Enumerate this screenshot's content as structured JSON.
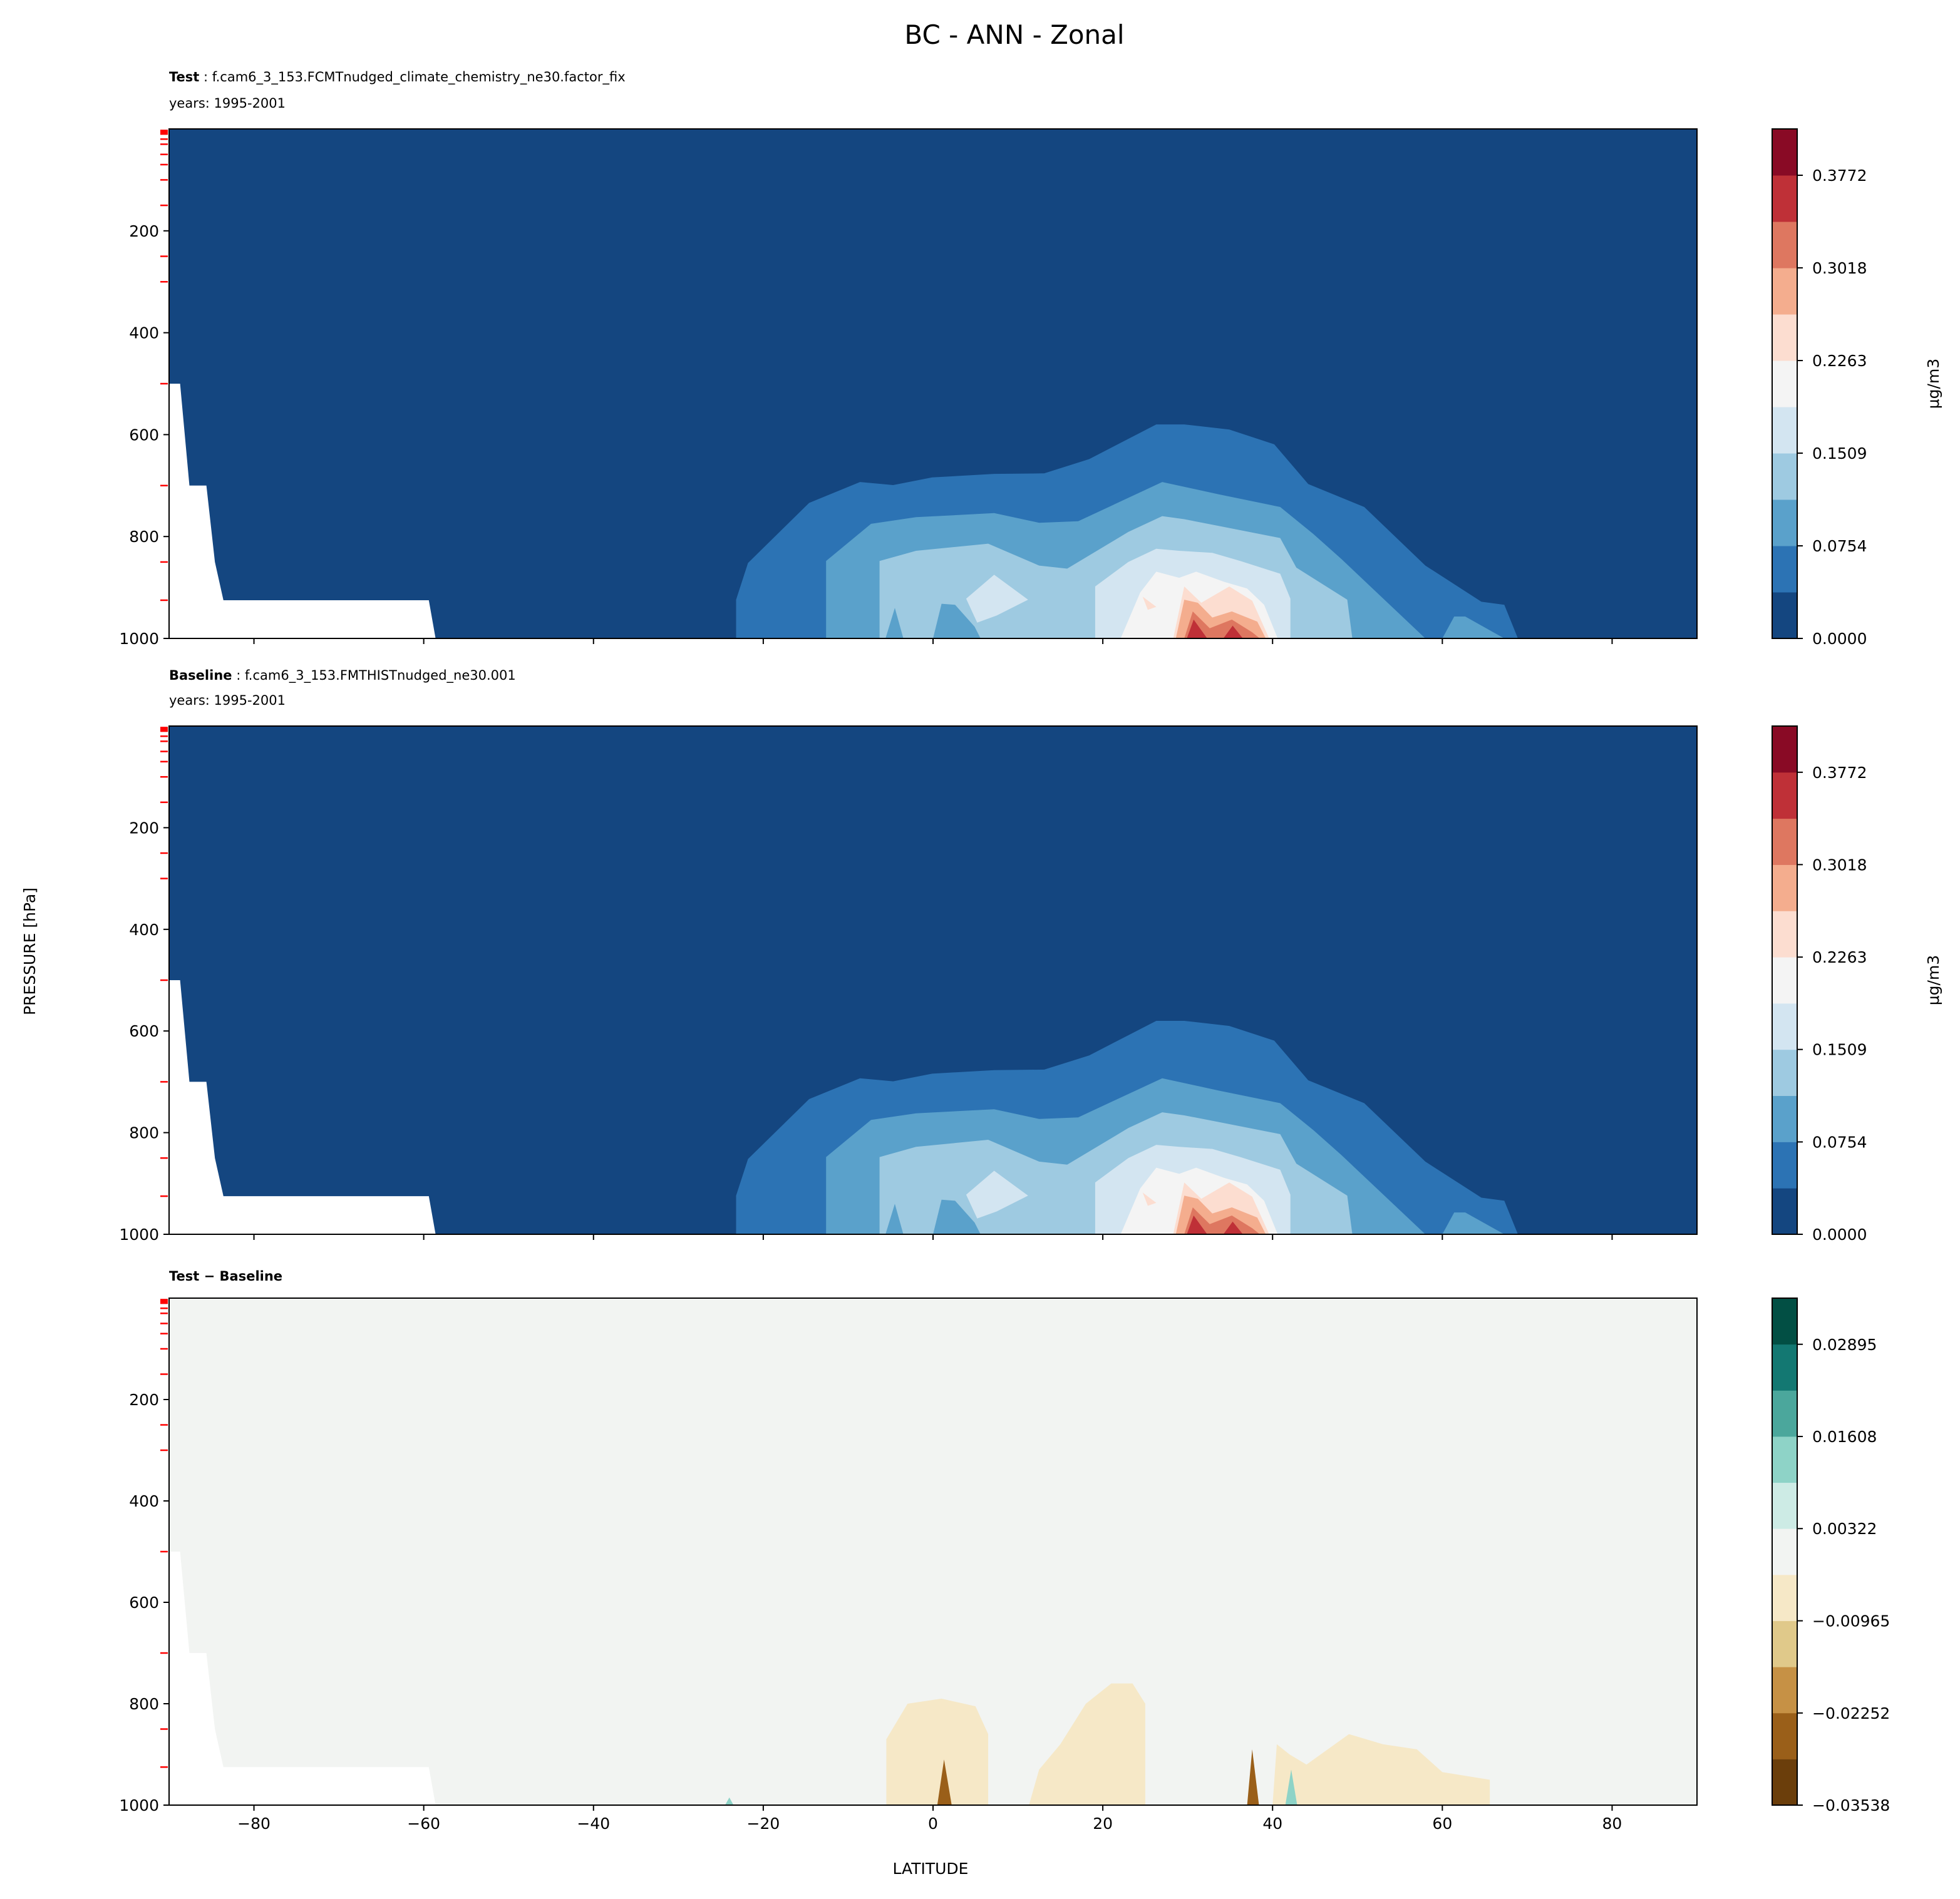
{
  "figure": {
    "title": "BC - ANN - Zonal",
    "xlabel": "LATITUDE",
    "ylabel": "PRESSURE [hPa]"
  },
  "chart_data": {
    "type": "contour",
    "x_range": [
      -90,
      90
    ],
    "y_range": [
      0,
      1000
    ],
    "y_inverted": true,
    "x_ticks": [
      -80,
      -60,
      -40,
      -20,
      0,
      20,
      40,
      60,
      80
    ],
    "x_tick_labels": [
      "−80",
      "−60",
      "−40",
      "−20",
      "0",
      "20",
      "40",
      "60",
      "80"
    ],
    "y_ticks": [
      200,
      400,
      600,
      800,
      1000
    ],
    "y_tick_labels": [
      "200",
      "400",
      "600",
      "800",
      "1000"
    ],
    "reference_levels_hPa": [
      3,
      5,
      7,
      10,
      20,
      30,
      50,
      70,
      100,
      150,
      250,
      300,
      500,
      700,
      850,
      925
    ],
    "reference_level_color": "#ff0000",
    "missing_region": [
      [
        -90,
        1000
      ],
      [
        -90,
        500
      ],
      [
        -88.7,
        500
      ],
      [
        -87.6,
        700
      ],
      [
        -85.6,
        700
      ],
      [
        -84.6,
        850
      ],
      [
        -83.6,
        925
      ],
      [
        -59.4,
        925
      ],
      [
        -58.6,
        1000
      ]
    ],
    "panels": [
      {
        "name": "test",
        "title_bold": "Test",
        "title_rest": " : f.cam6_3_153.FCMTnudged_climate_chemistry_ne30.factor_fix",
        "subtitle": "years: 1995-2001",
        "colorbar": {
          "label": "μg/m3",
          "bin_edges_min": 0,
          "bin_width": 0.03772,
          "colors": [
            "#144680",
            "#2c73b4",
            "#5aa1cb",
            "#9ecae1",
            "#d3e5f1",
            "#f4f4f4",
            "#fcddd0",
            "#f4ad8e",
            "#de7760",
            "#bf3037",
            "#890a25"
          ],
          "ticks": [
            0.0,
            0.0754,
            0.1509,
            0.2263,
            0.3018,
            0.3772
          ],
          "tick_labels": [
            "0.0000",
            "0.0754",
            "0.1509",
            "0.2263",
            "0.3018",
            "0.3772"
          ]
        },
        "background_bin": 0,
        "contours": "shared_bc"
      },
      {
        "name": "baseline",
        "title_bold": "Baseline",
        "title_rest": " : f.cam6_3_153.FMTHISTnudged_ne30.001",
        "subtitle": "years: 1995-2001",
        "colorbar": {
          "label": "μg/m3",
          "bin_edges_min": 0,
          "bin_width": 0.03772,
          "colors": [
            "#144680",
            "#2c73b4",
            "#5aa1cb",
            "#9ecae1",
            "#d3e5f1",
            "#f4f4f4",
            "#fcddd0",
            "#f4ad8e",
            "#de7760",
            "#bf3037",
            "#890a25"
          ],
          "ticks": [
            0.0,
            0.0754,
            0.1509,
            0.2263,
            0.3018,
            0.3772
          ],
          "tick_labels": [
            "0.0000",
            "0.0754",
            "0.1509",
            "0.2263",
            "0.3018",
            "0.3772"
          ]
        },
        "background_bin": 0,
        "contours": "shared_bc"
      },
      {
        "name": "difference",
        "title_bold": "Test − Baseline",
        "title_rest": "",
        "subtitle": "",
        "colorbar": {
          "label": "",
          "bin_edges_min": -0.03538,
          "bin_width": 0.006434,
          "colors": [
            "#6b3e0b",
            "#9a5f19",
            "#c69145",
            "#e0c98a",
            "#f6e8c7",
            "#f2f4f2",
            "#cdebe5",
            "#8ed3c7",
            "#4ba79c",
            "#137872",
            "#024f44"
          ],
          "ticks": [
            -0.03538,
            -0.02252,
            -0.00965,
            0.00322,
            0.01608,
            0.02895
          ],
          "tick_labels": [
            "−0.03538",
            "−0.02252",
            "−0.00965",
            "0.00322",
            "0.01608",
            "0.02895"
          ]
        },
        "background_bin": 5,
        "contours": [
          {
            "bin": 4,
            "polygons": [
              [
                [
                  -5.5,
                  1000
                ],
                [
                  -5.5,
                  870
                ],
                [
                  -3,
                  800
                ],
                [
                  1,
                  790
                ],
                [
                  5,
                  805
                ],
                [
                  6.5,
                  860
                ],
                [
                  6.5,
                  1000
                ]
              ],
              [
                [
                  11.3,
                  1000
                ],
                [
                  12.5,
                  930
                ],
                [
                  15,
                  880
                ],
                [
                  18,
                  800
                ],
                [
                  21,
                  760
                ],
                [
                  23.5,
                  760
                ],
                [
                  25,
                  800
                ],
                [
                  25,
                  1000
                ]
              ],
              [
                [
                  40,
                  1000
                ],
                [
                  40.5,
                  880
                ],
                [
                  42,
                  900
                ],
                [
                  44,
                  920
                ],
                [
                  49,
                  860
                ],
                [
                  53,
                  880
                ],
                [
                  57,
                  890
                ],
                [
                  60,
                  935
                ],
                [
                  65.6,
                  950
                ],
                [
                  65.6,
                  1000
                ]
              ]
            ]
          },
          {
            "bin": 1,
            "polygons": [
              [
                [
                  0.5,
                  1000
                ],
                [
                  1.3,
                  910
                ],
                [
                  2.2,
                  1000
                ]
              ],
              [
                [
                  37,
                  1000
                ],
                [
                  37.6,
                  890
                ],
                [
                  38.4,
                  1000
                ]
              ]
            ]
          },
          {
            "bin": 7,
            "polygons": [
              [
                [
                  41.5,
                  1000
                ],
                [
                  42.2,
                  930
                ],
                [
                  42.9,
                  1000
                ]
              ],
              [
                [
                  -24.5,
                  1000
                ],
                [
                  -24,
                  985
                ],
                [
                  -23.5,
                  1000
                ]
              ]
            ]
          }
        ]
      }
    ],
    "shared_bc_contours": [
      {
        "bin": 1,
        "polygons": [
          [
            [
              -23.2,
              998
            ],
            [
              -23.2,
              924
            ],
            [
              -21.8,
              852
            ],
            [
              -14.6,
              734
            ],
            [
              -8.6,
              693
            ],
            [
              -4.7,
              699
            ],
            [
              -0.1,
              684
            ],
            [
              7.2,
              677
            ],
            [
              13.1,
              676
            ],
            [
              18.4,
              648
            ],
            [
              26.3,
              580
            ],
            [
              29.6,
              580
            ],
            [
              34.9,
              590
            ],
            [
              40.2,
              619
            ],
            [
              44.2,
              697
            ],
            [
              50.8,
              742
            ],
            [
              58,
              857
            ],
            [
              64.6,
              928
            ],
            [
              67.3,
              934
            ],
            [
              68.9,
              1000
            ],
            [
              -23.2,
              1000
            ]
          ]
        ]
      },
      {
        "bin": 2,
        "polygons": [
          [
            [
              -12.6,
              1000
            ],
            [
              -12.6,
              848
            ],
            [
              -7.3,
              775
            ],
            [
              -2,
              762
            ],
            [
              7.2,
              754
            ],
            [
              12.5,
              773
            ],
            [
              17.1,
              770
            ],
            [
              27,
              693
            ],
            [
              33.6,
              717
            ],
            [
              40.9,
              742
            ],
            [
              44.8,
              795
            ],
            [
              48.1,
              844
            ],
            [
              58,
              1000
            ]
          ],
          [
            [
              60,
              1000
            ],
            [
              61.4,
              957
            ],
            [
              62.7,
              957
            ],
            [
              67.3,
              1000
            ]
          ]
        ]
      },
      {
        "bin": 3,
        "polygons": [
          [
            [
              -6.3,
              1000
            ],
            [
              -6.3,
              848
            ],
            [
              -2,
              828
            ],
            [
              6.5,
              814
            ],
            [
              12.5,
              857
            ],
            [
              15.8,
              863
            ],
            [
              23,
              791
            ],
            [
              27,
              760
            ],
            [
              29.6,
              766
            ],
            [
              33.6,
              779
            ],
            [
              40.9,
              803
            ],
            [
              42.8,
              861
            ],
            [
              48.8,
              924
            ],
            [
              49.4,
              1000
            ]
          ]
        ]
      },
      {
        "bin": 2,
        "polygons": [
          [
            [
              0,
              1000
            ],
            [
              1,
              932
            ],
            [
              2.6,
              934
            ],
            [
              4.9,
              977
            ],
            [
              5.6,
              1000
            ]
          ],
          [
            [
              -5.6,
              1000
            ],
            [
              -4.5,
              940
            ],
            [
              -3.5,
              1000
            ]
          ]
        ]
      },
      {
        "bin": 4,
        "polygons": [
          [
            [
              3.9,
              922
            ],
            [
              7.2,
              875
            ],
            [
              11.2,
              924
            ],
            [
              7.5,
              955
            ],
            [
              5.2,
              969
            ]
          ],
          [
            [
              19.1,
              1000
            ],
            [
              19.1,
              898
            ],
            [
              23,
              850
            ],
            [
              26.3,
              824
            ],
            [
              29,
              828
            ],
            [
              32.9,
              832
            ],
            [
              36.2,
              848
            ],
            [
              40.9,
              873
            ],
            [
              42.1,
              922
            ],
            [
              42.1,
              1000
            ]
          ]
        ]
      },
      {
        "bin": 5,
        "polygons": [
          [
            [
              22.1,
              1000
            ],
            [
              24.4,
              910
            ],
            [
              26.3,
              869
            ],
            [
              29,
              881
            ],
            [
              31,
              869
            ],
            [
              34.3,
              889
            ],
            [
              37,
              902
            ],
            [
              39,
              934
            ],
            [
              40.6,
              1000
            ]
          ]
        ]
      },
      {
        "bin": 6,
        "polygons": [
          [
            [
              28.3,
              1000
            ],
            [
              29.6,
              898
            ],
            [
              31.6,
              930
            ],
            [
              34.9,
              898
            ],
            [
              37.6,
              926
            ],
            [
              39.6,
              1000
            ]
          ],
          [
            [
              24.7,
              918
            ],
            [
              26.3,
              938
            ],
            [
              25.3,
              944
            ]
          ]
        ]
      },
      {
        "bin": 7,
        "polygons": [
          [
            [
              28.6,
              1000
            ],
            [
              29.6,
              924
            ],
            [
              31.2,
              930
            ],
            [
              32.9,
              959
            ],
            [
              35.2,
              947
            ],
            [
              38.2,
              967
            ],
            [
              39.2,
              1000
            ]
          ]
        ]
      },
      {
        "bin": 8,
        "polygons": [
          [
            [
              29.6,
              1000
            ],
            [
              30.6,
              947
            ],
            [
              32.6,
              980
            ],
            [
              35.2,
              963
            ],
            [
              37.6,
              988
            ],
            [
              38.5,
              1000
            ]
          ]
        ]
      },
      {
        "bin": 9,
        "polygons": [
          [
            [
              29.9,
              1000
            ],
            [
              30.7,
              963
            ],
            [
              32.3,
              1000
            ]
          ],
          [
            [
              34.2,
              1000
            ],
            [
              35.3,
              975
            ],
            [
              36.5,
              1000
            ]
          ]
        ]
      }
    ]
  }
}
